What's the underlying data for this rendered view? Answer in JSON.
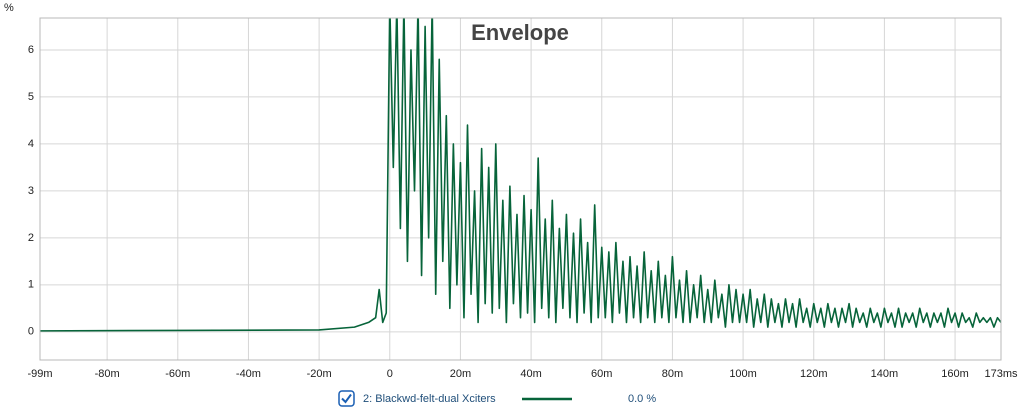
{
  "chart_data": {
    "type": "line",
    "title": "Envelope",
    "ylabel": "%",
    "x": [
      -99,
      -60,
      -20,
      -10,
      -6,
      -4,
      -3,
      -2,
      -1,
      0,
      1,
      2,
      3,
      4,
      5,
      6,
      7,
      8,
      9,
      10,
      11,
      12,
      13,
      14,
      15,
      16,
      17,
      18,
      19,
      20,
      21,
      22,
      23,
      24,
      25,
      26,
      27,
      28,
      29,
      30,
      31,
      32,
      33,
      34,
      35,
      36,
      37,
      38,
      39,
      40,
      41,
      42,
      43,
      44,
      45,
      46,
      47,
      48,
      49,
      50,
      51,
      52,
      53,
      54,
      55,
      56,
      57,
      58,
      59,
      60,
      61,
      62,
      63,
      64,
      65,
      66,
      67,
      68,
      69,
      70,
      71,
      72,
      73,
      74,
      75,
      76,
      77,
      78,
      79,
      80,
      81,
      82,
      83,
      84,
      85,
      86,
      87,
      88,
      89,
      90,
      91,
      92,
      93,
      94,
      95,
      96,
      97,
      98,
      99,
      100,
      101,
      102,
      103,
      104,
      105,
      106,
      107,
      108,
      109,
      110,
      111,
      112,
      113,
      114,
      115,
      116,
      117,
      118,
      119,
      120,
      121,
      122,
      123,
      124,
      125,
      126,
      127,
      128,
      129,
      130,
      131,
      132,
      133,
      134,
      135,
      136,
      137,
      138,
      139,
      140,
      141,
      142,
      143,
      144,
      145,
      146,
      147,
      148,
      149,
      150,
      151,
      152,
      153,
      154,
      155,
      156,
      157,
      158,
      159,
      160,
      161,
      162,
      163,
      164,
      165,
      166,
      167,
      168,
      169,
      170,
      171,
      172,
      173
    ],
    "series": [
      {
        "name": "2: Blackwd-felt-dual Xciters",
        "color": "#07643a",
        "readout": "0.0 %",
        "values": [
          0.02,
          0.03,
          0.04,
          0.1,
          0.2,
          0.3,
          0.9,
          0.2,
          0.4,
          7.0,
          3.5,
          7.0,
          2.2,
          7.0,
          1.5,
          6.0,
          3.0,
          7.0,
          1.2,
          6.5,
          2.0,
          7.0,
          0.8,
          5.8,
          1.5,
          4.6,
          0.5,
          4.0,
          1.0,
          3.6,
          0.3,
          4.4,
          0.8,
          3.0,
          0.2,
          3.9,
          0.6,
          3.5,
          0.4,
          4.0,
          0.5,
          2.8,
          0.2,
          3.1,
          0.6,
          2.5,
          0.3,
          2.9,
          0.4,
          2.6,
          0.2,
          3.7,
          0.5,
          2.4,
          0.3,
          2.8,
          0.2,
          2.2,
          0.5,
          2.5,
          0.3,
          2.1,
          0.2,
          2.4,
          0.4,
          1.9,
          0.2,
          2.7,
          0.3,
          1.8,
          0.3,
          1.7,
          0.2,
          1.9,
          0.4,
          1.5,
          0.2,
          1.6,
          0.3,
          1.4,
          0.2,
          1.7,
          0.3,
          1.3,
          0.2,
          1.5,
          0.3,
          1.2,
          0.2,
          1.6,
          0.3,
          1.1,
          0.2,
          1.3,
          0.2,
          1.0,
          0.3,
          1.2,
          0.2,
          0.9,
          0.2,
          1.1,
          0.3,
          0.8,
          0.1,
          1.0,
          0.2,
          0.9,
          0.2,
          0.8,
          0.2,
          0.9,
          0.1,
          0.7,
          0.2,
          0.8,
          0.1,
          0.7,
          0.2,
          0.6,
          0.1,
          0.7,
          0.2,
          0.6,
          0.1,
          0.7,
          0.2,
          0.5,
          0.1,
          0.6,
          0.2,
          0.5,
          0.1,
          0.6,
          0.2,
          0.5,
          0.1,
          0.5,
          0.2,
          0.6,
          0.1,
          0.5,
          0.2,
          0.4,
          0.1,
          0.5,
          0.2,
          0.4,
          0.1,
          0.5,
          0.2,
          0.4,
          0.1,
          0.5,
          0.1,
          0.4,
          0.2,
          0.4,
          0.1,
          0.5,
          0.2,
          0.4,
          0.1,
          0.4,
          0.2,
          0.4,
          0.1,
          0.5,
          0.2,
          0.4,
          0.1,
          0.4,
          0.2,
          0.3,
          0.1,
          0.4,
          0.2,
          0.3,
          0.2,
          0.3,
          0.1,
          0.3,
          0.2
        ]
      }
    ],
    "xlim": [
      -99,
      173
    ],
    "xticks": [
      {
        "value": -99,
        "label": "-99m"
      },
      {
        "value": -80,
        "label": "-80m"
      },
      {
        "value": -60,
        "label": "-60m"
      },
      {
        "value": -40,
        "label": "-40m"
      },
      {
        "value": -20,
        "label": "-20m"
      },
      0,
      {
        "value": 20,
        "label": "20m"
      },
      {
        "value": 40,
        "label": "40m"
      },
      {
        "value": 60,
        "label": "60m"
      },
      {
        "value": 80,
        "label": "80m"
      },
      {
        "value": 100,
        "label": "100m"
      },
      {
        "value": 120,
        "label": "120m"
      },
      {
        "value": 140,
        "label": "140m"
      },
      {
        "value": 160,
        "label": "160m"
      },
      {
        "value": 173,
        "label": "173ms"
      }
    ],
    "ylim": [
      -0.6,
      6.68
    ],
    "yticks": [
      0,
      1,
      2,
      3,
      4,
      5,
      6
    ],
    "grid": true
  }
}
